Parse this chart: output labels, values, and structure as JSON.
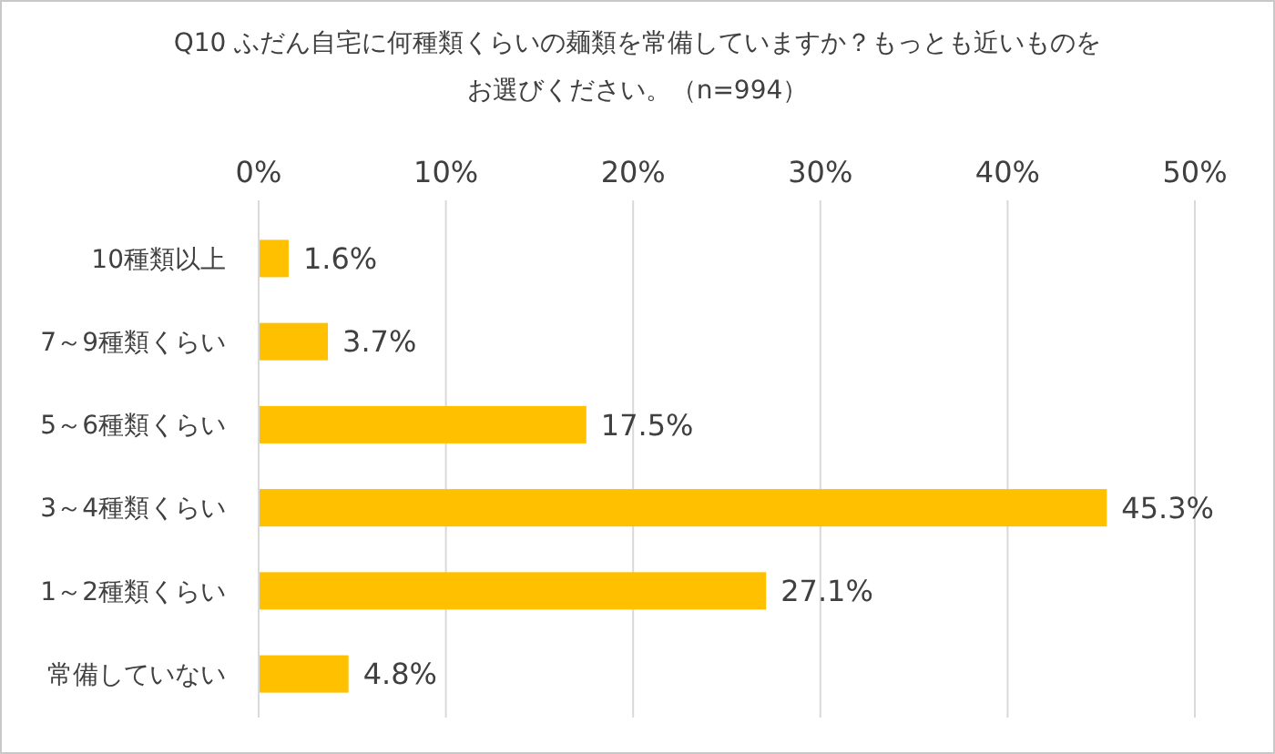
{
  "chart_data": {
    "type": "bar",
    "orientation": "horizontal",
    "title": "Q10 ふだん自宅に何種類くらいの麺類を常備していますか？もっとも近いものをお選びください。（n=994）",
    "categories": [
      "10種類以上",
      "7～9種類くらい",
      "5～6種類くらい",
      "3～4種類くらい",
      "1～2種類くらい",
      "常備していない"
    ],
    "values": [
      1.6,
      3.7,
      17.5,
      45.3,
      27.1,
      4.8
    ],
    "value_labels": [
      "1.6%",
      "3.7%",
      "17.5%",
      "45.3%",
      "27.1%",
      "4.8%"
    ],
    "color": "#ffc000",
    "xlim": [
      0,
      50
    ],
    "xticks": [
      {
        "value": 0,
        "label": "0%"
      },
      {
        "value": 10,
        "label": "10%"
      },
      {
        "value": 20,
        "label": "20%"
      },
      {
        "value": 30,
        "label": "30%"
      },
      {
        "value": 40,
        "label": "40%"
      },
      {
        "value": 50,
        "label": "50%"
      }
    ],
    "grid": "x"
  }
}
